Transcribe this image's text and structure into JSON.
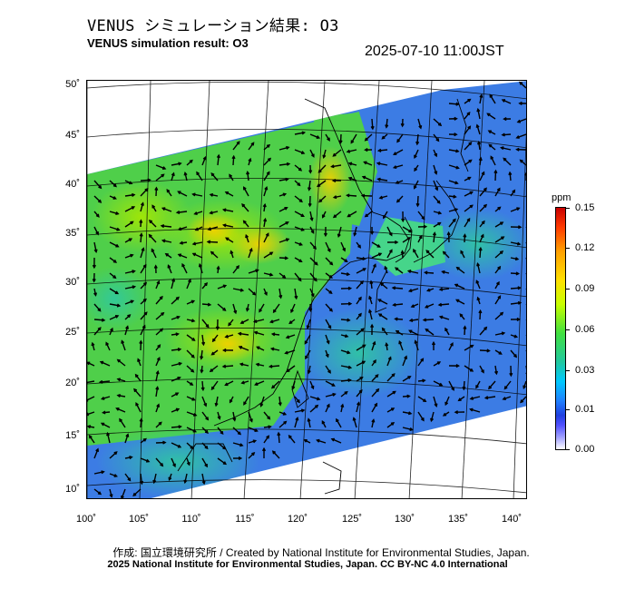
{
  "title_jp": "VENUS シミュレーション結果: O3",
  "title_en": "VENUS simulation result: O3",
  "timestamp": "2025-07-10 11:00JST",
  "lat_labels": [
    "50˚",
    "45˚",
    "40˚",
    "35˚",
    "30˚",
    "25˚",
    "20˚",
    "15˚",
    "10˚"
  ],
  "lon_labels": [
    "100˚",
    "105˚",
    "110˚",
    "115˚",
    "120˚",
    "125˚",
    "130˚",
    "135˚",
    "140˚"
  ],
  "colorbar": {
    "unit": "ppm",
    "labels": [
      "0.15",
      "0.12",
      "0.09",
      "0.06",
      "0.03",
      "0.01",
      "0.00"
    ]
  },
  "credits": {
    "line1": "作成: 国立環境研究所 / Created by National Institute for Environmental Studies, Japan.",
    "line2": "2025 National Institute for Environmental Studies, Japan. CC BY-NC 4.0 International"
  },
  "colors": {
    "ocean_low": "#3a78e0",
    "land_mid": "#5ad23a",
    "high": "#f0c800",
    "arrow": "#000000"
  }
}
